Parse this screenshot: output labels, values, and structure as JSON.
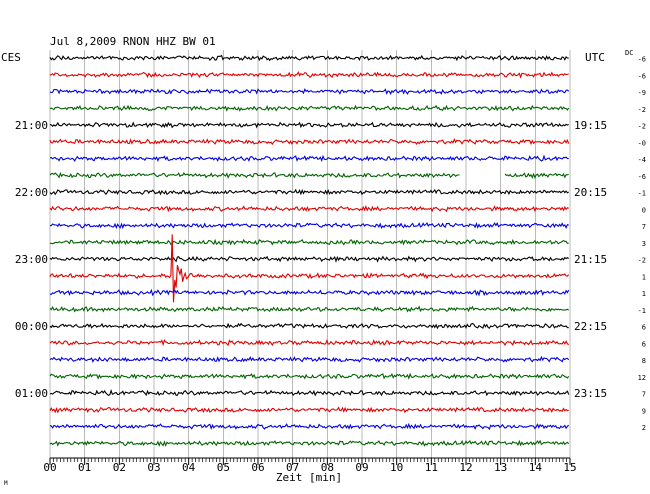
{
  "chart_data": {
    "type": "line",
    "title": "Jul 8,2009   RNON HHZ BW 01",
    "left_timezone_label": "CES",
    "right_timezone_label": "UTC",
    "dc_header": "DC",
    "xlabel": "Zeit [min]",
    "xlim": [
      0,
      15
    ],
    "x_tick_labels": [
      "00",
      "01",
      "02",
      "03",
      "04",
      "05",
      "06",
      "07",
      "08",
      "09",
      "10",
      "11",
      "12",
      "13",
      "14",
      "15"
    ],
    "trace_count": 24,
    "trace_colors": [
      "#000000",
      "#e00000",
      "#0000e0",
      "#006400"
    ],
    "left_time_labels": [
      {
        "trace_index": 4,
        "text": "21:00"
      },
      {
        "trace_index": 8,
        "text": "22:00"
      },
      {
        "trace_index": 12,
        "text": "23:00"
      },
      {
        "trace_index": 16,
        "text": "00:00"
      },
      {
        "trace_index": 20,
        "text": "01:00"
      }
    ],
    "right_time_labels": [
      {
        "trace_index": 4,
        "text": "19:15"
      },
      {
        "trace_index": 8,
        "text": "20:15"
      },
      {
        "trace_index": 12,
        "text": "21:15"
      },
      {
        "trace_index": 16,
        "text": "22:15"
      },
      {
        "trace_index": 20,
        "text": "23:15"
      }
    ],
    "dc_offsets": [
      "-6",
      "-6",
      "-9",
      "-2",
      "-2",
      "-0",
      "-4",
      "-6",
      "-1",
      "0",
      "7",
      "3",
      "-2",
      "1",
      "1",
      "-1",
      "6",
      "6",
      "8",
      "12",
      "7",
      "9",
      "2"
    ],
    "events": [
      {
        "trace_index": 13,
        "minute": 3.5,
        "label": "local earthquake burst"
      }
    ],
    "gaps": [
      {
        "trace_index": 7,
        "start_minute": 11.85,
        "end_minute": 13.1
      }
    ],
    "grid": true
  },
  "corner_mark": "M"
}
